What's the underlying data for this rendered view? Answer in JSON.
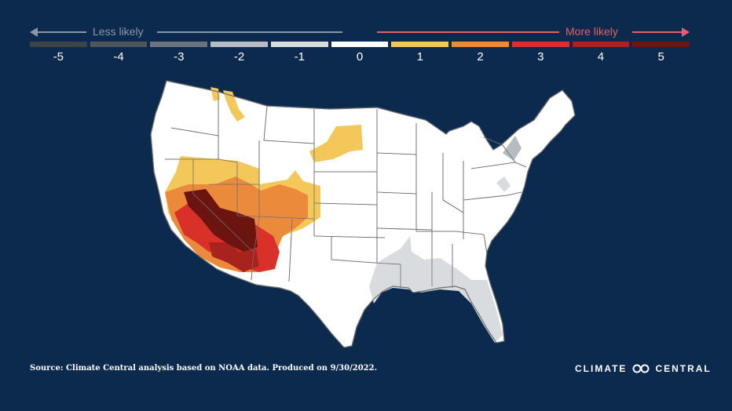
{
  "scale": {
    "less_label": "Less likely",
    "more_label": "More likely",
    "bins": [
      {
        "label": "-5",
        "color": "#3d4347"
      },
      {
        "label": "-4",
        "color": "#4e555b"
      },
      {
        "label": "-3",
        "color": "#6c747b"
      },
      {
        "label": "-2",
        "color": "#b6bcc2"
      },
      {
        "label": "-1",
        "color": "#d8dcdf"
      },
      {
        "label": "0",
        "color": "#ffffff"
      },
      {
        "label": "1",
        "color": "#f3c75a"
      },
      {
        "label": "2",
        "color": "#ec8a3b"
      },
      {
        "label": "3",
        "color": "#d9312a"
      },
      {
        "label": "4",
        "color": "#a9221d"
      },
      {
        "label": "5",
        "color": "#6b1410"
      }
    ]
  },
  "map": {
    "land_color": "#ffffff",
    "border_color": "#6e6e6e"
  },
  "footer": {
    "source": "Source: Climate Central analysis based on NOAA data. Produced on 9/30/2022.",
    "brand": "CLIMATE CENTRAL"
  }
}
